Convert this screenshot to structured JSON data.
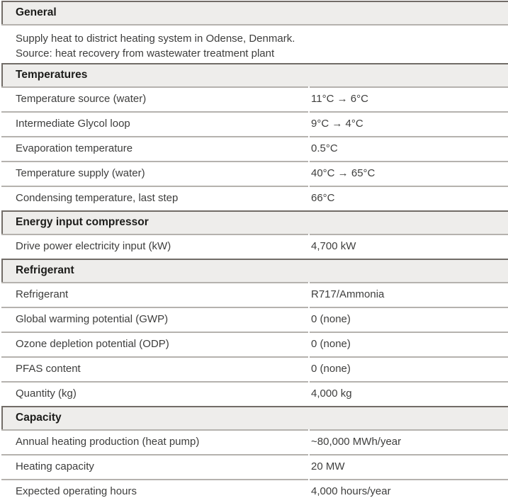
{
  "colors": {
    "page_bg": "#ffffff",
    "section_band_bg": "#eeedeb",
    "section_title_text": "#1c1c1a",
    "body_text": "#3e3e3d",
    "dark_rule": "#716c67",
    "light_rule": "#b5b2ae"
  },
  "sections": [
    {
      "title": "General",
      "description": [
        "Supply heat to district heating system in Odense, Denmark.",
        "Source: heat recovery from wastewater treatment plant"
      ],
      "rows": []
    },
    {
      "title": "Temperatures",
      "rows": [
        {
          "label": "Temperature source (water)",
          "value": "11°C → 6°C"
        },
        {
          "label": "Intermediate Glycol loop",
          "value": "9°C → 4°C"
        },
        {
          "label": "Evaporation temperature",
          "value": "0.5°C"
        },
        {
          "label": "Temperature supply (water)",
          "value": "40°C → 65°C"
        },
        {
          "label": "Condensing temperature, last step",
          "value": "66°C"
        }
      ]
    },
    {
      "title": "Energy input compressor",
      "rows": [
        {
          "label": "Drive power electricity input (kW)",
          "value": "4,700 kW"
        }
      ]
    },
    {
      "title": "Refrigerant",
      "rows": [
        {
          "label": "Refrigerant",
          "value": "R717/Ammonia"
        },
        {
          "label": "Global warming potential (GWP)",
          "value": "0 (none)"
        },
        {
          "label": "Ozone depletion potential (ODP)",
          "value": "0 (none)"
        },
        {
          "label": "PFAS content",
          "value": "0 (none)"
        },
        {
          "label": "Quantity (kg)",
          "value": "4,000 kg"
        }
      ]
    },
    {
      "title": "Capacity",
      "rows": [
        {
          "label": "Annual heating production (heat pump)",
          "value": "~80,000 MWh/year"
        },
        {
          "label": "Heating capacity",
          "value": "20 MW"
        },
        {
          "label": "Expected operating hours",
          "value": "4,000 hours/year"
        }
      ]
    }
  ]
}
